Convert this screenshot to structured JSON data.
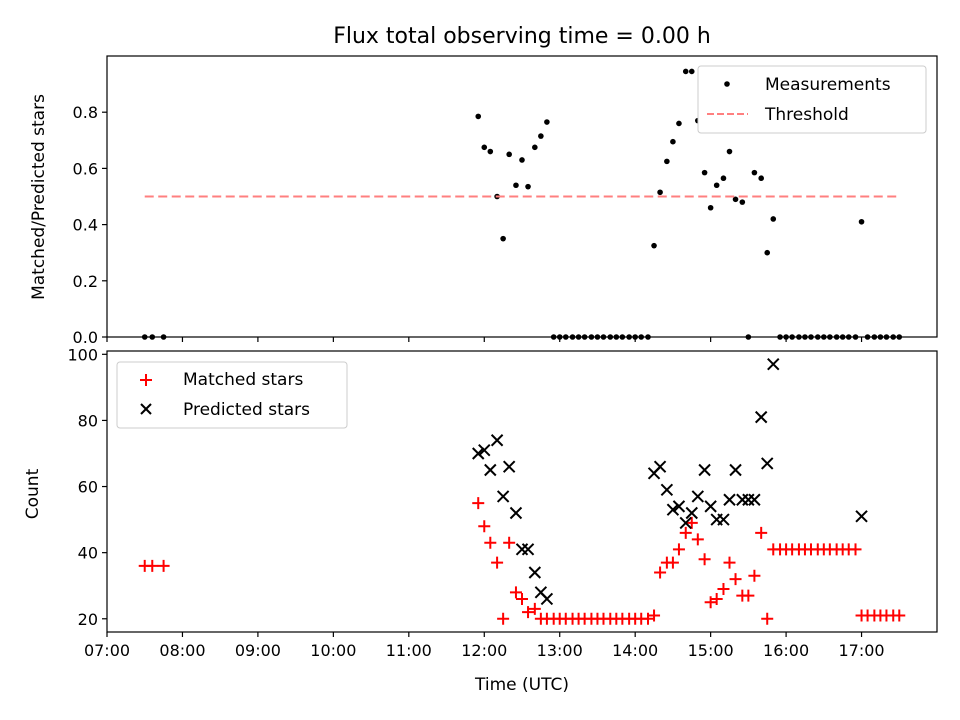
{
  "title": "Flux total observing time = 0.00 h",
  "colors": {
    "measurement": "#000000",
    "threshold": "#ff7f7f",
    "matched": "#ff0000",
    "predicted": "#000000",
    "axis": "#000000"
  },
  "chart_data": [
    {
      "type": "scatter",
      "name": "ratio-plot",
      "ylabel": "Matched/Predicted stars",
      "xlim": [
        7.0,
        18.0
      ],
      "ylim": [
        0.0,
        1.0
      ],
      "yticks": [
        0.0,
        0.2,
        0.4,
        0.6,
        0.8
      ],
      "ytick_labels": [
        "0.0",
        "0.2",
        "0.4",
        "0.6",
        "0.8"
      ],
      "legend_position": "top-right",
      "series": [
        {
          "name": "Measurements",
          "marker": "dot",
          "x": [
            7.5,
            7.6,
            7.75,
            11.92,
            12.0,
            12.08,
            12.17,
            12.25,
            12.33,
            12.42,
            12.5,
            12.58,
            12.67,
            12.75,
            12.83,
            12.92,
            13.0,
            13.08,
            13.17,
            13.25,
            13.33,
            13.42,
            13.5,
            13.58,
            13.67,
            13.75,
            13.83,
            13.92,
            14.0,
            14.08,
            14.17,
            14.25,
            14.33,
            14.42,
            14.5,
            14.58,
            14.67,
            14.75,
            14.83,
            14.92,
            15.0,
            15.08,
            15.17,
            15.25,
            15.33,
            15.42,
            15.5,
            15.58,
            15.67,
            15.75,
            15.83,
            15.92,
            16.0,
            16.08,
            16.17,
            16.25,
            16.33,
            16.42,
            16.5,
            16.58,
            16.67,
            16.75,
            16.83,
            16.92,
            17.0,
            17.08,
            17.17,
            17.25,
            17.33,
            17.42,
            17.5
          ],
          "y": [
            0,
            0,
            0,
            0.785,
            0.675,
            0.66,
            0.5,
            0.35,
            0.65,
            0.54,
            0.63,
            0.535,
            0.675,
            0.715,
            0.765,
            0,
            0,
            0,
            0,
            0,
            0,
            0,
            0,
            0,
            0,
            0,
            0,
            0,
            0,
            0,
            0,
            0.325,
            0.515,
            0.625,
            0.695,
            0.76,
            0.945,
            0.945,
            0.77,
            0.585,
            0.46,
            0.54,
            0.565,
            0.66,
            0.49,
            0.48,
            0,
            0.585,
            0.565,
            0.3,
            0.42,
            0,
            0,
            0,
            0,
            0,
            0,
            0,
            0,
            0,
            0,
            0,
            0,
            0,
            0.41,
            0,
            0,
            0,
            0,
            0,
            0
          ]
        },
        {
          "name": "Threshold",
          "marker": "dashed-line",
          "x": [
            7.5,
            17.5
          ],
          "y": [
            0.5,
            0.5
          ]
        }
      ]
    },
    {
      "type": "scatter",
      "name": "count-plot",
      "ylabel": "Count",
      "xlabel": "Time (UTC)",
      "xlim": [
        7.0,
        18.0
      ],
      "ylim": [
        16.0,
        101.0
      ],
      "yticks": [
        20,
        40,
        60,
        80,
        100
      ],
      "ytick_labels": [
        "20",
        "40",
        "60",
        "80",
        "100"
      ],
      "xticks": [
        7,
        8,
        9,
        10,
        11,
        12,
        13,
        14,
        15,
        16,
        17
      ],
      "xtick_labels": [
        "07:00",
        "08:00",
        "09:00",
        "10:00",
        "11:00",
        "12:00",
        "13:00",
        "14:00",
        "15:00",
        "16:00",
        "17:00"
      ],
      "legend_position": "top-left",
      "series": [
        {
          "name": "Matched stars",
          "marker": "plus",
          "x": [
            7.5,
            7.6,
            7.75,
            11.92,
            12.0,
            12.08,
            12.17,
            12.25,
            12.33,
            12.42,
            12.5,
            12.58,
            12.67,
            12.75,
            12.83,
            12.92,
            13.0,
            13.08,
            13.17,
            13.25,
            13.33,
            13.42,
            13.5,
            13.58,
            13.67,
            13.75,
            13.83,
            13.92,
            14.0,
            14.08,
            14.17,
            14.25,
            14.33,
            14.42,
            14.5,
            14.58,
            14.67,
            14.75,
            14.83,
            14.92,
            15.0,
            15.08,
            15.17,
            15.25,
            15.33,
            15.42,
            15.5,
            15.58,
            15.67,
            15.75,
            15.83,
            15.92,
            16.0,
            16.08,
            16.17,
            16.25,
            16.33,
            16.42,
            16.5,
            16.58,
            16.67,
            16.75,
            16.83,
            16.92,
            17.0,
            17.08,
            17.17,
            17.25,
            17.33,
            17.42,
            17.5
          ],
          "y": [
            36,
            36,
            36,
            55,
            48,
            43,
            37,
            20,
            43,
            28,
            26,
            22,
            23,
            20,
            20,
            20,
            20,
            20,
            20,
            20,
            20,
            20,
            20,
            20,
            20,
            20,
            20,
            20,
            20,
            20,
            20,
            21,
            34,
            37,
            37,
            41,
            46,
            49,
            44,
            38,
            25,
            26,
            29,
            37,
            32,
            27,
            27,
            33,
            46,
            20,
            41,
            41,
            41,
            41,
            41,
            41,
            41,
            41,
            41,
            41,
            41,
            41,
            41,
            41,
            21,
            21,
            21,
            21,
            21,
            21,
            21
          ]
        },
        {
          "name": "Predicted stars",
          "marker": "x",
          "x": [
            11.92,
            12.0,
            12.08,
            12.17,
            12.25,
            12.33,
            12.42,
            12.5,
            12.58,
            12.67,
            12.75,
            12.83,
            14.25,
            14.33,
            14.42,
            14.5,
            14.58,
            14.67,
            14.75,
            14.83,
            14.92,
            15.0,
            15.08,
            15.17,
            15.25,
            15.33,
            15.42,
            15.5,
            15.58,
            15.67,
            15.75,
            15.83,
            17.0
          ],
          "y": [
            70,
            71,
            65,
            74,
            57,
            66,
            52,
            41,
            41,
            34,
            28,
            26,
            64,
            66,
            59,
            53,
            54,
            49,
            52,
            57,
            65,
            54,
            50,
            50,
            56,
            65,
            56,
            56,
            56,
            81,
            67,
            97,
            51
          ]
        }
      ]
    }
  ]
}
